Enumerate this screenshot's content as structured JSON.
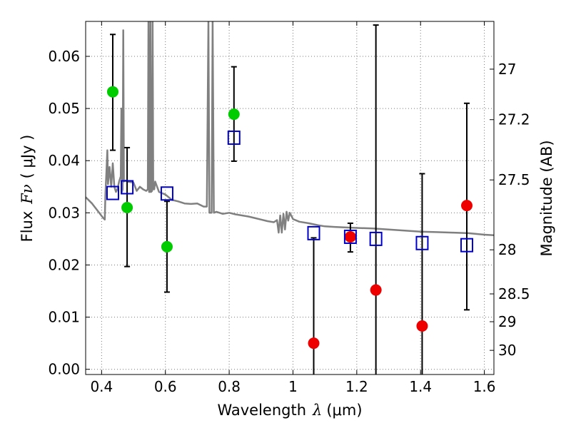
{
  "chart_data": {
    "type": "scatter",
    "xlabel_text": "Wavelength",
    "xlabel_symbol": "λ",
    "xlabel_unit": "(μm)",
    "ylabel_text": "Flux",
    "ylabel_symbol": "Fν",
    "ylabel_unit": "( μJy )",
    "y2label": "Magnitude (AB)",
    "xlim": [
      0.35,
      1.63
    ],
    "ylim": [
      -0.001,
      0.0667
    ],
    "grid": true,
    "x_ticks": [
      0.4,
      0.6,
      0.8,
      1.0,
      1.2,
      1.4,
      1.6
    ],
    "x_tick_labels": [
      "0.4",
      "0.6",
      "0.8",
      "1",
      "1.2",
      "1.4",
      "1.6"
    ],
    "y_ticks": [
      0.0,
      0.01,
      0.02,
      0.03,
      0.04,
      0.05,
      0.06
    ],
    "y_tick_labels": [
      "0.00",
      "0.01",
      "0.02",
      "0.03",
      "0.04",
      "0.05",
      "0.06"
    ],
    "y2_ticks": [
      27,
      27.2,
      27.5,
      28,
      28.5,
      29,
      30
    ],
    "y2_tick_labels": [
      "27",
      "27.2",
      "27.5",
      "28",
      "28.5",
      "29",
      "30"
    ],
    "colors": {
      "green": "#00cc00",
      "red": "#ee0000",
      "model_line": "#808080",
      "model_box": "#0000cc",
      "errorbar": "#000000",
      "grid": "#777777"
    },
    "series": [
      {
        "name": "observed-green",
        "color": "#00cc00",
        "points": [
          {
            "x": 0.435,
            "y": 0.0532,
            "ylow": 0.042,
            "yhigh": 0.0642
          },
          {
            "x": 0.48,
            "y": 0.031,
            "ylow": 0.0197,
            "yhigh": 0.0425
          },
          {
            "x": 0.605,
            "y": 0.0235,
            "ylow": 0.0148,
            "yhigh": 0.0322
          },
          {
            "x": 0.815,
            "y": 0.0489,
            "ylow": 0.0399,
            "yhigh": 0.058
          }
        ]
      },
      {
        "name": "observed-red",
        "color": "#ee0000",
        "points": [
          {
            "x": 1.065,
            "y": 0.005,
            "ylow": -0.001,
            "yhigh": 0.0252
          },
          {
            "x": 1.18,
            "y": 0.0254,
            "ylow": 0.0225,
            "yhigh": 0.028
          },
          {
            "x": 1.26,
            "y": 0.0152,
            "ylow": -0.001,
            "yhigh": 0.066
          },
          {
            "x": 1.405,
            "y": 0.0083,
            "ylow": -0.001,
            "yhigh": 0.0375
          },
          {
            "x": 1.545,
            "y": 0.0314,
            "ylow": 0.0114,
            "yhigh": 0.051
          }
        ]
      },
      {
        "name": "model-photometry",
        "color": "#0000cc",
        "points": [
          {
            "x": 0.435,
            "y": 0.0338
          },
          {
            "x": 0.48,
            "y": 0.0349
          },
          {
            "x": 0.605,
            "y": 0.0337
          },
          {
            "x": 0.815,
            "y": 0.0444
          },
          {
            "x": 1.065,
            "y": 0.0261
          },
          {
            "x": 1.18,
            "y": 0.0254
          },
          {
            "x": 1.26,
            "y": 0.025
          },
          {
            "x": 1.405,
            "y": 0.0242
          },
          {
            "x": 1.545,
            "y": 0.0238
          }
        ]
      }
    ],
    "model_spectrum": [
      [
        0.35,
        0.033
      ],
      [
        0.37,
        0.0318
      ],
      [
        0.39,
        0.0302
      ],
      [
        0.405,
        0.029
      ],
      [
        0.41,
        0.0287
      ],
      [
        0.412,
        0.0335
      ],
      [
        0.415,
        0.0375
      ],
      [
        0.418,
        0.042
      ],
      [
        0.42,
        0.0355
      ],
      [
        0.425,
        0.0388
      ],
      [
        0.43,
        0.035
      ],
      [
        0.435,
        0.0395
      ],
      [
        0.44,
        0.035
      ],
      [
        0.445,
        0.034
      ],
      [
        0.45,
        0.0346
      ],
      [
        0.455,
        0.036
      ],
      [
        0.46,
        0.037
      ],
      [
        0.462,
        0.05
      ],
      [
        0.464,
        0.034
      ],
      [
        0.466,
        0.0345
      ],
      [
        0.468,
        0.065
      ],
      [
        0.47,
        0.036
      ],
      [
        0.475,
        0.0362
      ],
      [
        0.48,
        0.036
      ],
      [
        0.5,
        0.0358
      ],
      [
        0.51,
        0.0342
      ],
      [
        0.52,
        0.035
      ],
      [
        0.53,
        0.0345
      ],
      [
        0.54,
        0.0342
      ],
      [
        0.545,
        0.0345
      ],
      [
        0.547,
        0.0667
      ],
      [
        0.549,
        0.034
      ],
      [
        0.551,
        0.034
      ],
      [
        0.553,
        0.0667
      ],
      [
        0.555,
        0.034
      ],
      [
        0.558,
        0.0342
      ],
      [
        0.56,
        0.0667
      ],
      [
        0.562,
        0.0345
      ],
      [
        0.565,
        0.0345
      ],
      [
        0.568,
        0.036
      ],
      [
        0.58,
        0.034
      ],
      [
        0.6,
        0.0335
      ],
      [
        0.62,
        0.0325
      ],
      [
        0.64,
        0.0322
      ],
      [
        0.66,
        0.0318
      ],
      [
        0.68,
        0.0317
      ],
      [
        0.7,
        0.0318
      ],
      [
        0.72,
        0.0312
      ],
      [
        0.73,
        0.0312
      ],
      [
        0.735,
        0.0667
      ],
      [
        0.738,
        0.03
      ],
      [
        0.745,
        0.03
      ],
      [
        0.748,
        0.0667
      ],
      [
        0.752,
        0.03
      ],
      [
        0.76,
        0.0302
      ],
      [
        0.78,
        0.0298
      ],
      [
        0.8,
        0.03
      ],
      [
        0.82,
        0.0297
      ],
      [
        0.84,
        0.0295
      ],
      [
        0.86,
        0.0293
      ],
      [
        0.88,
        0.029
      ],
      [
        0.9,
        0.0287
      ],
      [
        0.92,
        0.0284
      ],
      [
        0.94,
        0.0282
      ],
      [
        0.95,
        0.0286
      ],
      [
        0.955,
        0.0262
      ],
      [
        0.96,
        0.0295
      ],
      [
        0.965,
        0.0262
      ],
      [
        0.97,
        0.0298
      ],
      [
        0.975,
        0.0268
      ],
      [
        0.98,
        0.0302
      ],
      [
        0.985,
        0.0285
      ],
      [
        0.99,
        0.03
      ],
      [
        1.0,
        0.0288
      ],
      [
        1.02,
        0.0283
      ],
      [
        1.05,
        0.028
      ],
      [
        1.08,
        0.0276
      ],
      [
        1.1,
        0.0274
      ],
      [
        1.13,
        0.0273
      ],
      [
        1.16,
        0.0272
      ],
      [
        1.2,
        0.0271
      ],
      [
        1.25,
        0.027
      ],
      [
        1.3,
        0.0268
      ],
      [
        1.35,
        0.0266
      ],
      [
        1.4,
        0.0264
      ],
      [
        1.45,
        0.0263
      ],
      [
        1.5,
        0.0262
      ],
      [
        1.55,
        0.0261
      ],
      [
        1.6,
        0.0258
      ],
      [
        1.63,
        0.0257
      ]
    ]
  }
}
